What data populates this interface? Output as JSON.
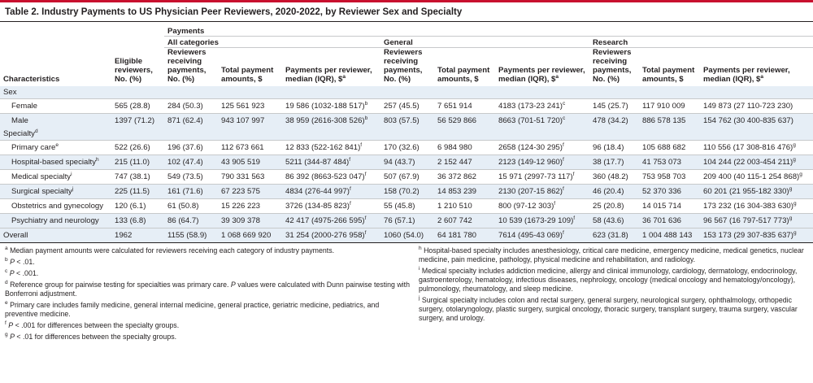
{
  "title": "Table 2. Industry Payments to US Physician Peer Reviewers, 2020-2022, by Reviewer Sex and Specialty",
  "header": {
    "payments": "Payments",
    "all_categories": "All categories",
    "general": "General",
    "research": "Research",
    "characteristics": "Characteristics",
    "eligible": "Eligible reviewers, No. (%)",
    "receiving": "Reviewers receiving payments, No. (%)",
    "total": "Total payment amounts, $",
    "per_reviewer": "Payments per reviewer, median (IQR), $",
    "per_reviewer_sup": "a"
  },
  "sections": {
    "sex": "Sex",
    "specialty": "Specialty",
    "specialty_sup": "d"
  },
  "rows": [
    {
      "label": "Female",
      "sup": "",
      "eligible": "565 (28.8)",
      "all_n": "284 (50.3)",
      "all_total": "125 561 923",
      "all_med": "19 586 (1032-188 517)",
      "all_med_sup": "b",
      "gen_n": "257 (45.5)",
      "gen_total": "7 651 914",
      "gen_med": "4183 (173-23 241)",
      "gen_med_sup": "c",
      "res_n": "145 (25.7)",
      "res_total": "117 910 009",
      "res_med": "149 873 (27 110-723 230)",
      "res_med_sup": ""
    },
    {
      "label": "Male",
      "sup": "",
      "eligible": "1397 (71.2)",
      "all_n": "871 (62.4)",
      "all_total": "943 107 997",
      "all_med": "38 959 (2616-308 526)",
      "all_med_sup": "b",
      "gen_n": "803 (57.5)",
      "gen_total": "56 529 866",
      "gen_med": "8663 (701-51 720)",
      "gen_med_sup": "c",
      "res_n": "478 (34.2)",
      "res_total": "886 578 135",
      "res_med": "154 762 (30 400-835 637)",
      "res_med_sup": ""
    },
    {
      "label": "Primary care",
      "sup": "e",
      "eligible": "522 (26.6)",
      "all_n": "196 (37.6)",
      "all_total": "112 673 661",
      "all_med": "12 833 (522-162 841)",
      "all_med_sup": "f",
      "gen_n": "170 (32.6)",
      "gen_total": "6 984 980",
      "gen_med": "2658 (124-30 295)",
      "gen_med_sup": "f",
      "res_n": "96 (18.4)",
      "res_total": "105 688 682",
      "res_med": "110 556 (17 308-816 476)",
      "res_med_sup": "g"
    },
    {
      "label": "Hospital-based specialty",
      "sup": "h",
      "eligible": "215 (11.0)",
      "all_n": "102 (47.4)",
      "all_total": "43 905 519",
      "all_med": "5211 (344-87 484)",
      "all_med_sup": "f",
      "gen_n": "94 (43.7)",
      "gen_total": "2 152 447",
      "gen_med": "2123 (149-12 960)",
      "gen_med_sup": "f",
      "res_n": "38 (17.7)",
      "res_total": "41 753 073",
      "res_med": "104 244 (22 003-454 211)",
      "res_med_sup": "g"
    },
    {
      "label": "Medical specialty",
      "sup": "i",
      "eligible": "747 (38.1)",
      "all_n": "549 (73.5)",
      "all_total": "790 331 563",
      "all_med": "86 392 (8663-523 047)",
      "all_med_sup": "f",
      "gen_n": "507 (67.9)",
      "gen_total": "36 372 862",
      "gen_med": "15 971 (2997-73 117)",
      "gen_med_sup": "f",
      "res_n": "360 (48.2)",
      "res_total": "753 958 703",
      "res_med": "209 400 (40 115-1 254 868)",
      "res_med_sup": "g"
    },
    {
      "label": "Surgical specialty",
      "sup": "j",
      "eligible": "225 (11.5)",
      "all_n": "161 (71.6)",
      "all_total": "67 223 575",
      "all_med": "4834 (276-44 997)",
      "all_med_sup": "f",
      "gen_n": "158 (70.2)",
      "gen_total": "14 853 239",
      "gen_med": "2130 (207-15 862)",
      "gen_med_sup": "f",
      "res_n": "46 (20.4)",
      "res_total": "52 370 336",
      "res_med": "60 201 (21 955-182 330)",
      "res_med_sup": "g"
    },
    {
      "label": "Obstetrics and gynecology",
      "sup": "",
      "eligible": "120 (6.1)",
      "all_n": "61 (50.8)",
      "all_total": "15 226 223",
      "all_med": "3726 (134-85 823)",
      "all_med_sup": "f",
      "gen_n": "55 (45.8)",
      "gen_total": "1 210 510",
      "gen_med": "800 (97-12 303)",
      "gen_med_sup": "f",
      "res_n": "25 (20.8)",
      "res_total": "14 015 714",
      "res_med": "173 232 (16 304-383 630)",
      "res_med_sup": "g"
    },
    {
      "label": "Psychiatry and neurology",
      "sup": "",
      "eligible": "133 (6.8)",
      "all_n": "86 (64.7)",
      "all_total": "39 309 378",
      "all_med": "42 417 (4975-266 595)",
      "all_med_sup": "f",
      "gen_n": "76 (57.1)",
      "gen_total": "2 607 742",
      "gen_med": "10 539 (1673-29 109)",
      "gen_med_sup": "f",
      "res_n": "58 (43.6)",
      "res_total": "36 701 636",
      "res_med": "96 567 (16 797-517 773)",
      "res_med_sup": "g"
    },
    {
      "label": "Overall",
      "sup": "",
      "eligible": "1962",
      "all_n": "1155 (58.9)",
      "all_total": "1 068 669 920",
      "all_med": "31 254 (2000-276 958)",
      "all_med_sup": "f",
      "gen_n": "1060 (54.0)",
      "gen_total": "64 181 780",
      "gen_med": "7614 (495-43 069)",
      "gen_med_sup": "f",
      "res_n": "623 (31.8)",
      "res_total": "1 004 488 143",
      "res_med": "153 173 (29 307-835 637)",
      "res_med_sup": "g"
    }
  ],
  "footnotes": {
    "a": {
      "mark": "a",
      "text": "Median payment amounts were calculated for reviewers receiving each category of industry payments."
    },
    "b": {
      "mark": "b",
      "p": "P",
      "text": " < .01."
    },
    "c": {
      "mark": "c",
      "p": "P",
      "text": " < .001."
    },
    "d": {
      "mark": "d",
      "text1": "Reference group for pairwise testing for specialties was primary care. ",
      "p": "P",
      "text2": " values were calculated with Dunn pairwise testing with Bonferroni adjustment."
    },
    "e": {
      "mark": "e",
      "text": "Primary care includes family medicine, general internal medicine, general practice, geriatric medicine, pediatrics, and preventive medicine."
    },
    "f": {
      "mark": "f",
      "p": "P",
      "text": " < .001 for differences between the specialty groups."
    },
    "g": {
      "mark": "g",
      "p": "P",
      "text": " < .01 for differences between the specialty groups."
    },
    "h": {
      "mark": "h",
      "text": "Hospital-based specialty includes anesthesiology, critical care medicine, emergency medicine, medical genetics, nuclear medicine, pain medicine, pathology, physical medicine and rehabilitation, and radiology."
    },
    "i": {
      "mark": "i",
      "text": "Medical specialty includes addiction medicine, allergy and clinical immunology, cardiology, dermatology, endocrinology, gastroenterology, hematology, infectious diseases, nephrology, oncology (medical oncology and hematology/oncology), pulmonology, rheumatology, and sleep medicine."
    },
    "j": {
      "mark": "j",
      "text": "Surgical specialty includes colon and rectal surgery, general surgery, neurological surgery, ophthalmology, orthopedic surgery, otolaryngology, plastic surgery, surgical oncology, thoracic surgery, transplant surgery, trauma surgery, vascular surgery, and urology."
    }
  },
  "colors": {
    "accent": "#c8102e",
    "shade": "#e6eef6",
    "rule": "#c7c9cb"
  }
}
